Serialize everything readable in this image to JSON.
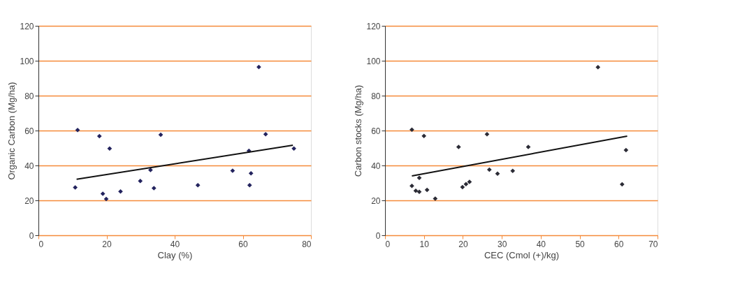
{
  "chart_data": [
    {
      "type": "scatter",
      "xlabel": "Clay (%)",
      "ylabel": "Organic Carbon (Mg/ha)",
      "xlim": [
        0,
        80
      ],
      "xticks": [
        0,
        20,
        40,
        60,
        80
      ],
      "ylim": [
        0,
        120
      ],
      "yticks": [
        0,
        20,
        40,
        60,
        80,
        100,
        120
      ],
      "grid": "y",
      "series": [
        {
          "marker": "diamond",
          "color": "#23235e",
          "x": [
            10.8,
            11.5,
            17.9,
            18.9,
            19.9,
            20.9,
            24.1,
            29.9,
            32.9,
            33.9,
            35.9,
            46.8,
            57,
            61.8,
            62,
            62.4,
            64.7,
            66.7,
            75
          ],
          "values": [
            27.4,
            60.3,
            56.8,
            23.8,
            20.8,
            49.7,
            25.1,
            31.1,
            37.4,
            27,
            57.6,
            28.7,
            37,
            48.4,
            28.7,
            35.5,
            96.4,
            57.9,
            49.7
          ]
        },
        {
          "type": "line",
          "marker": "none",
          "line_style": "solid",
          "color": "#111111",
          "x": [
            11.2,
            74.7
          ],
          "values": [
            32.1,
            51.6
          ]
        }
      ]
    },
    {
      "type": "scatter",
      "xlabel": "CEC (Cmol (+)/kg)",
      "ylabel": "Carbon stocks (Mg/ha)",
      "xlim": [
        0,
        70
      ],
      "xticks": [
        0,
        10,
        20,
        30,
        40,
        50,
        60,
        70
      ],
      "ylim": [
        0,
        120
      ],
      "yticks": [
        0,
        20,
        40,
        60,
        80,
        100,
        120
      ],
      "grid": "y",
      "series": [
        {
          "marker": "diamond",
          "color": "#2b2b35",
          "x": [
            6.9,
            6.9,
            7.9,
            8.8,
            8.8,
            10,
            10.8,
            12.9,
            18.9,
            19.9,
            20.8,
            21.7,
            26.2,
            26.8,
            28.9,
            32.8,
            36.8,
            54.7,
            60.9,
            61.9
          ],
          "values": [
            60.5,
            28.3,
            25.5,
            32.9,
            24.9,
            56.9,
            26,
            21,
            50.6,
            27.6,
            29.3,
            30.6,
            57.9,
            37.6,
            35.3,
            36.9,
            50.6,
            96.3,
            29.2,
            48.8
          ]
        },
        {
          "type": "line",
          "marker": "none",
          "line_style": "solid",
          "color": "#111111",
          "x": [
            6.9,
            62.2
          ],
          "values": [
            34,
            56.8
          ]
        }
      ]
    }
  ]
}
